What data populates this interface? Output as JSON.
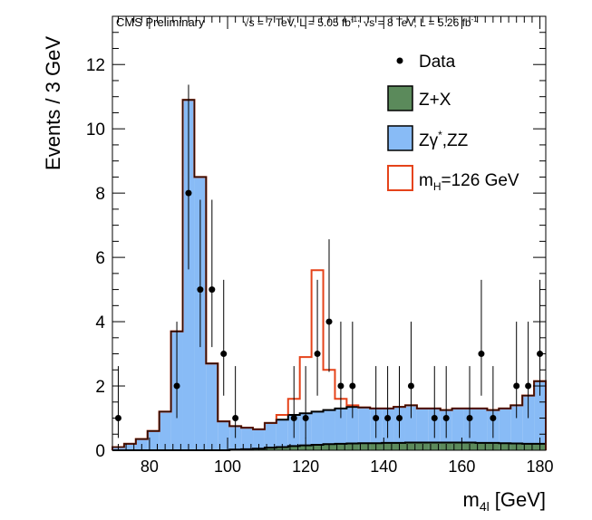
{
  "header": {
    "experiment": "CMS Preliminary",
    "lumi_7": "√s = 7 TeV, L = 5.05 fb",
    "lumi_8": "; √s = 8 TeV, L = 5.26 fb",
    "lumi_unit_sup": "-1"
  },
  "chart_data": {
    "type": "bar",
    "title": "",
    "xlabel": "m",
    "xlabel_sub": "4l",
    "xlabel_unit": "[GeV]",
    "ylabel": "Events / 3 GeV",
    "xlim": [
      70.5,
      181.5
    ],
    "ylim": [
      0,
      13.5
    ],
    "x_ticks": [
      80,
      100,
      120,
      140,
      160,
      180
    ],
    "y_ticks": [
      0,
      2,
      4,
      6,
      8,
      10,
      12
    ],
    "grid": false,
    "legend_position": "top-right",
    "bin_edges": [
      70.5,
      73.5,
      76.5,
      79.5,
      82.5,
      85.5,
      88.5,
      91.5,
      94.5,
      97.5,
      100.5,
      103.5,
      106.5,
      109.5,
      112.5,
      115.5,
      118.5,
      121.5,
      124.5,
      127.5,
      130.5,
      133.5,
      136.5,
      139.5,
      142.5,
      145.5,
      148.5,
      151.5,
      154.5,
      157.5,
      160.5,
      163.5,
      166.5,
      169.5,
      172.5,
      175.5,
      178.5,
      181.5
    ],
    "series": [
      {
        "name": "Z+X",
        "color": "#5b8a5b",
        "values": [
          0.0,
          0.0,
          0.0,
          0.0,
          0.0,
          0.0,
          0.0,
          0.0,
          0.0,
          0.0,
          0.02,
          0.03,
          0.05,
          0.08,
          0.1,
          0.13,
          0.15,
          0.17,
          0.19,
          0.2,
          0.21,
          0.22,
          0.22,
          0.23,
          0.23,
          0.24,
          0.24,
          0.24,
          0.24,
          0.24,
          0.24,
          0.23,
          0.23,
          0.22,
          0.21,
          0.2,
          0.2
        ]
      },
      {
        "name": "Zγ*,ZZ",
        "color": "#88bbf6",
        "values": [
          0.1,
          0.2,
          0.35,
          0.6,
          1.2,
          3.7,
          10.9,
          8.5,
          2.7,
          0.9,
          0.75,
          0.7,
          0.65,
          0.85,
          0.95,
          1.1,
          1.15,
          1.2,
          1.25,
          1.3,
          1.35,
          1.33,
          1.3,
          1.3,
          1.35,
          1.4,
          1.3,
          1.3,
          1.25,
          1.3,
          1.3,
          1.3,
          1.25,
          1.3,
          1.4,
          1.7,
          2.15
        ]
      },
      {
        "name": "m_H=126 GeV",
        "color": "#e5431a",
        "values": [
          0.1,
          0.2,
          0.35,
          0.6,
          1.2,
          3.7,
          10.9,
          8.5,
          2.7,
          0.9,
          0.75,
          0.7,
          0.65,
          0.85,
          1.1,
          1.6,
          2.9,
          5.6,
          2.5,
          1.6,
          1.4,
          1.33,
          1.3,
          1.3,
          1.35,
          1.4,
          1.3,
          1.3,
          1.25,
          1.3,
          1.3,
          1.3,
          1.25,
          1.3,
          1.4,
          1.7,
          2.15
        ]
      },
      {
        "name": "Data",
        "color": "#000000",
        "x": [
          72,
          87,
          90,
          93,
          96,
          99,
          102,
          117,
          120,
          123,
          126,
          129,
          132,
          138,
          141,
          144,
          147,
          153,
          156,
          162,
          165,
          168,
          174,
          177,
          180
        ],
        "y": [
          1,
          2,
          8,
          5,
          5,
          3,
          1,
          1,
          1,
          3,
          4,
          2,
          2,
          1,
          1,
          1,
          2,
          1,
          1,
          1,
          3,
          1,
          2,
          2,
          3
        ]
      }
    ]
  },
  "legend": [
    {
      "label": "Data",
      "kind": "marker"
    },
    {
      "label": "Z+X",
      "kind": "box",
      "fill": "#5b8a5b"
    },
    {
      "label": "Zγ",
      "sup": "*",
      "label_tail": ",ZZ",
      "kind": "box",
      "fill": "#88bbf6"
    },
    {
      "label": "m",
      "sub": "H",
      "label_tail": "=126 GeV",
      "kind": "box",
      "fill": "#ffffff",
      "stroke": "#e5431a"
    }
  ]
}
